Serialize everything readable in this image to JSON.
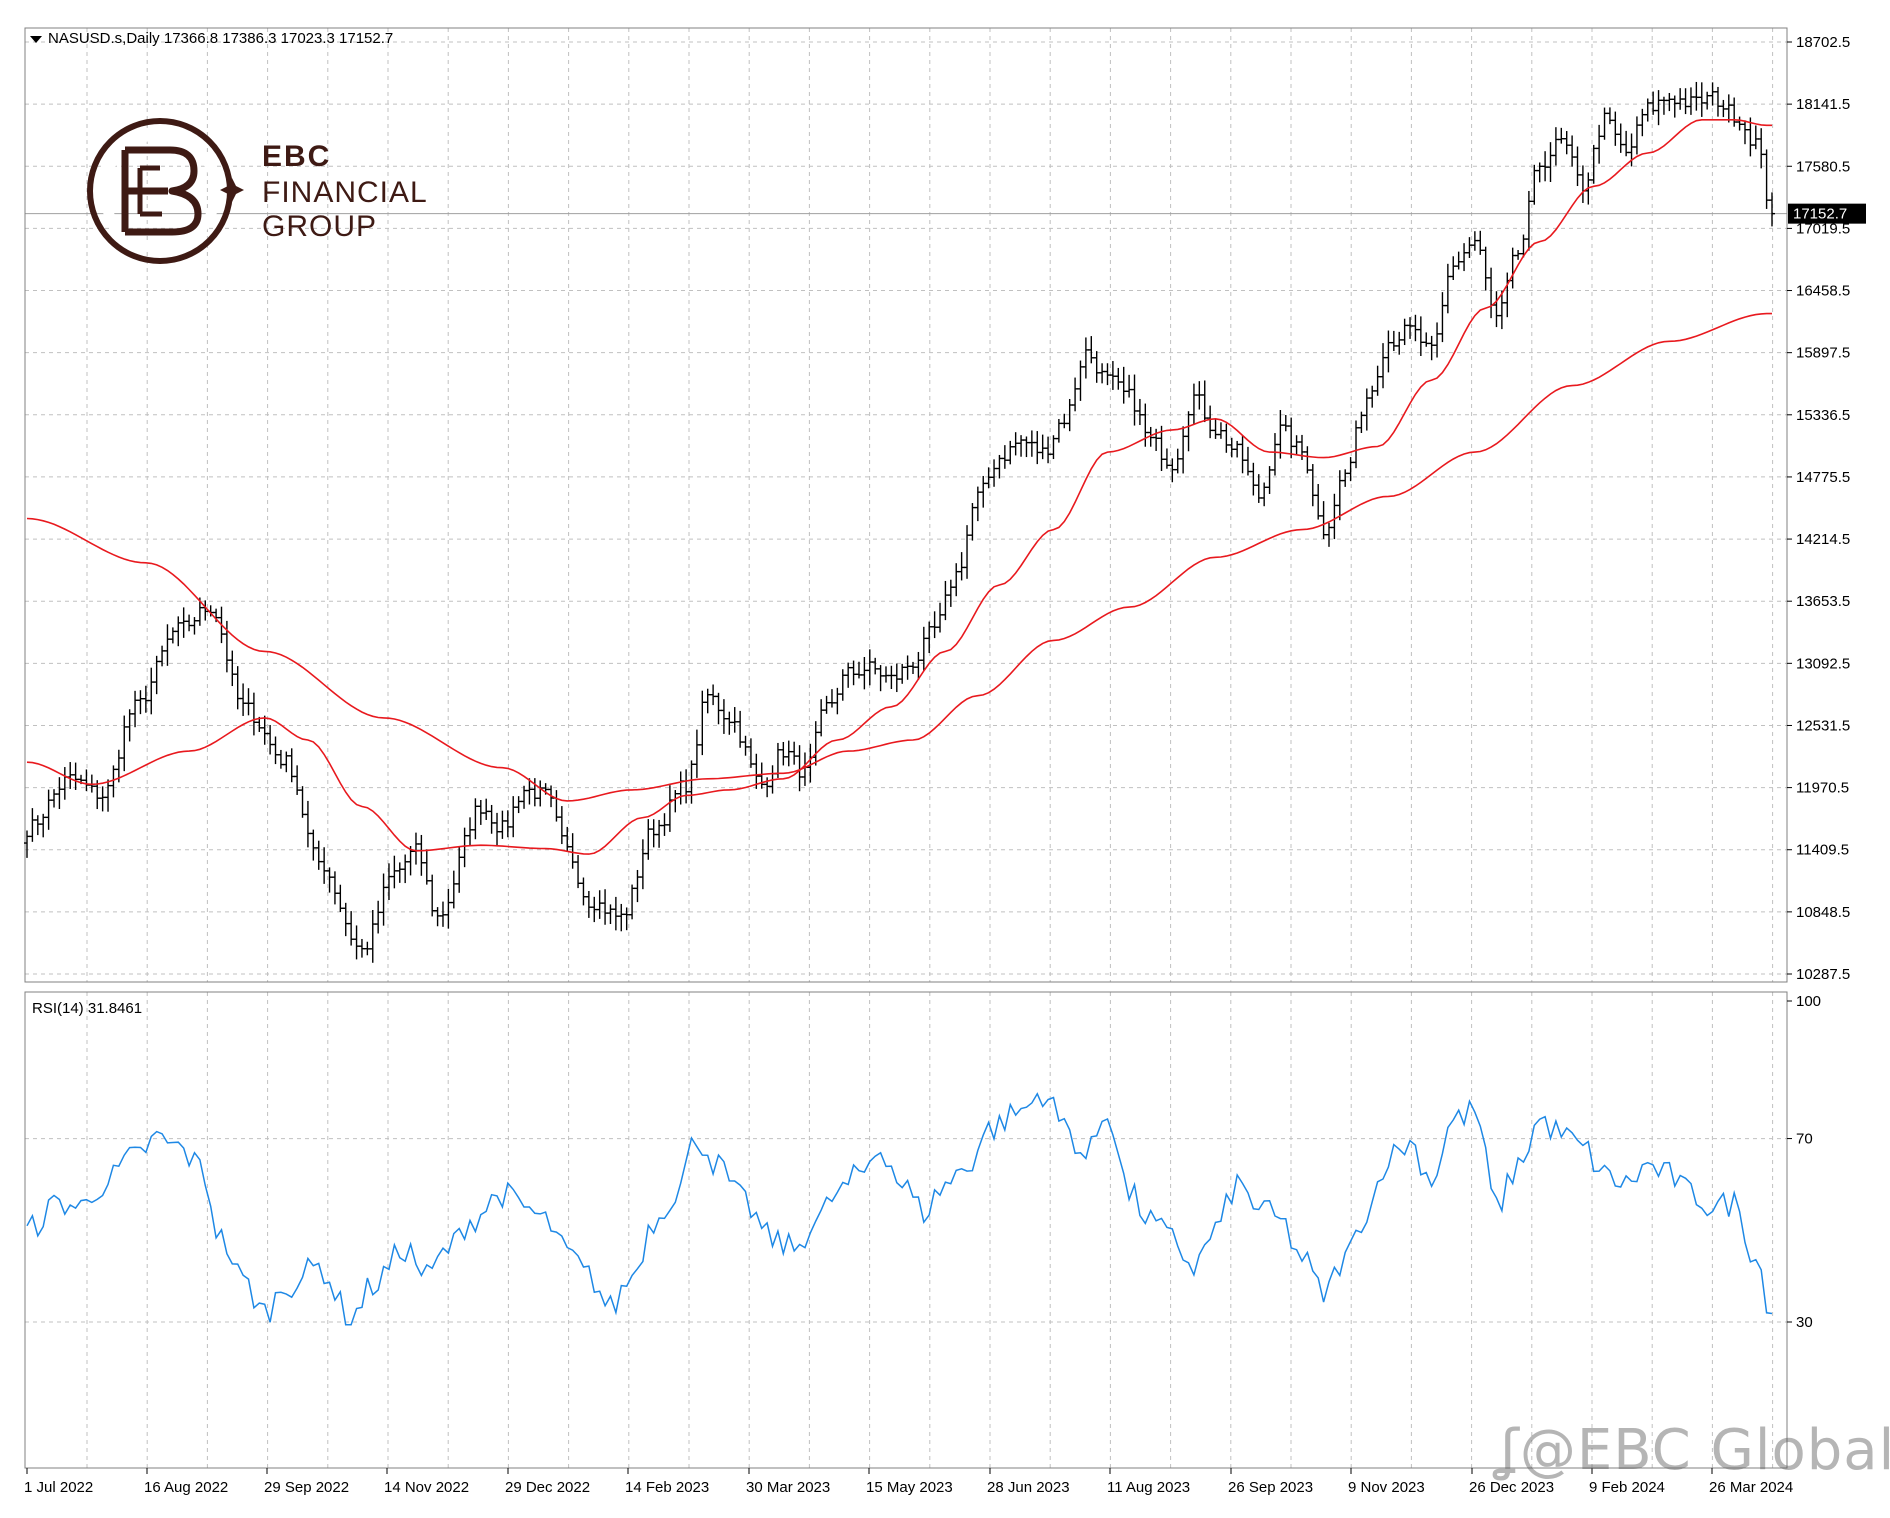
{
  "header": {
    "symbol_line": "NASUSD.s,Daily  17366.8 17386.3 17023.3 17152.7",
    "rsi_label": "RSI(14) 31.8461"
  },
  "logo": {
    "line1": "EBC",
    "line2": "FINANCIAL",
    "line3": "GROUP"
  },
  "watermark": "@EBC Global",
  "colors": {
    "candles": "#000000",
    "ma": "#e8191e",
    "rsi": "#1e88e5",
    "grid": "#c0c0c0",
    "frame": "#808080",
    "logo": "#3e1a14"
  },
  "chart_data": [
    {
      "type": "line",
      "panel": "price",
      "ylim": [
        10287.5,
        18702.5
      ],
      "yticks": [
        "18702.5",
        "18141.5",
        "17580.5",
        "17019.5",
        "16458.5",
        "15897.5",
        "15336.5",
        "14775.5",
        "14214.5",
        "13653.5",
        "13092.5",
        "12531.5",
        "11970.5",
        "11409.5",
        "10848.5",
        "10287.5"
      ],
      "current_price": "17152.7",
      "xticks": [
        "1 Jul 2022",
        "16 Aug 2022",
        "29 Sep 2022",
        "14 Nov 2022",
        "29 Dec 2022",
        "14 Feb 2023",
        "30 Mar 2023",
        "15 May 2023",
        "28 Jun 2023",
        "11 Aug 2023",
        "26 Sep 2023",
        "9 Nov 2023",
        "26 Dec 2023",
        "9 Feb 2024",
        "26 Mar 2024"
      ],
      "price_anchors": [
        [
          0,
          11600
        ],
        [
          8,
          12050
        ],
        [
          14,
          11900
        ],
        [
          20,
          12700
        ],
        [
          28,
          13400
        ],
        [
          34,
          13600
        ],
        [
          40,
          12700
        ],
        [
          48,
          12200
        ],
        [
          54,
          11300
        ],
        [
          62,
          10500
        ],
        [
          68,
          11200
        ],
        [
          72,
          11400
        ],
        [
          76,
          10800
        ],
        [
          84,
          11800
        ],
        [
          88,
          11600
        ],
        [
          92,
          11950
        ],
        [
          96,
          11900
        ],
        [
          100,
          11400
        ],
        [
          104,
          10950
        ],
        [
          110,
          10800
        ],
        [
          116,
          11600
        ],
        [
          122,
          12000
        ],
        [
          126,
          12800
        ],
        [
          130,
          12600
        ],
        [
          136,
          12000
        ],
        [
          140,
          12300
        ],
        [
          144,
          12100
        ],
        [
          148,
          12700
        ],
        [
          152,
          13000
        ],
        [
          156,
          13050
        ],
        [
          160,
          12950
        ],
        [
          164,
          13100
        ],
        [
          168,
          13400
        ],
        [
          172,
          13900
        ],
        [
          176,
          14600
        ],
        [
          180,
          14950
        ],
        [
          184,
          15100
        ],
        [
          188,
          15000
        ],
        [
          192,
          15300
        ],
        [
          196,
          15900
        ],
        [
          200,
          15650
        ],
        [
          204,
          15500
        ],
        [
          208,
          15100
        ],
        [
          212,
          14900
        ],
        [
          216,
          15500
        ],
        [
          220,
          15200
        ],
        [
          224,
          15000
        ],
        [
          228,
          14600
        ],
        [
          232,
          15200
        ],
        [
          236,
          15000
        ],
        [
          240,
          14300
        ],
        [
          244,
          14800
        ],
        [
          248,
          15500
        ],
        [
          252,
          16000
        ],
        [
          256,
          16100
        ],
        [
          260,
          15900
        ],
        [
          264,
          16700
        ],
        [
          268,
          16900
        ],
        [
          272,
          16200
        ],
        [
          276,
          16800
        ],
        [
          280,
          17600
        ],
        [
          284,
          17800
        ],
        [
          288,
          17400
        ],
        [
          292,
          18000
        ],
        [
          296,
          17700
        ],
        [
          300,
          18100
        ],
        [
          304,
          18200
        ],
        [
          308,
          18150
        ],
        [
          312,
          18200
        ],
        [
          316,
          18050
        ],
        [
          320,
          17800
        ],
        [
          323,
          17152.7
        ]
      ],
      "series": [
        {
          "role": "moving-average-1",
          "anchors": [
            [
              0,
              12200
            ],
            [
              12,
              12000
            ],
            [
              30,
              12300
            ],
            [
              44,
              12600
            ],
            [
              52,
              12400
            ],
            [
              62,
              11800
            ],
            [
              72,
              11400
            ],
            [
              84,
              11450
            ],
            [
              96,
              11420
            ],
            [
              104,
              11370
            ],
            [
              114,
              11700
            ],
            [
              122,
              11900
            ],
            [
              130,
              11950
            ],
            [
              140,
              12050
            ],
            [
              150,
              12400
            ],
            [
              160,
              12700
            ],
            [
              170,
              13200
            ],
            [
              180,
              13800
            ],
            [
              190,
              14300
            ],
            [
              200,
              15000
            ],
            [
              212,
              15200
            ],
            [
              220,
              15300
            ],
            [
              230,
              15000
            ],
            [
              240,
              14950
            ],
            [
              250,
              15050
            ],
            [
              260,
              15650
            ],
            [
              270,
              16300
            ],
            [
              280,
              16900
            ],
            [
              290,
              17400
            ],
            [
              300,
              17700
            ],
            [
              310,
              18000
            ],
            [
              316,
              18000
            ],
            [
              322,
              17950
            ]
          ]
        },
        {
          "role": "moving-average-2",
          "anchors": [
            [
              0,
              14400
            ],
            [
              22,
              14000
            ],
            [
              44,
              13200
            ],
            [
              66,
              12600
            ],
            [
              88,
              12150
            ],
            [
              100,
              11850
            ],
            [
              112,
              11950
            ],
            [
              126,
              12050
            ],
            [
              140,
              12100
            ],
            [
              152,
              12300
            ],
            [
              164,
              12400
            ],
            [
              176,
              12800
            ],
            [
              190,
              13300
            ],
            [
              204,
              13600
            ],
            [
              220,
              14050
            ],
            [
              236,
              14300
            ],
            [
              252,
              14600
            ],
            [
              268,
              15000
            ],
            [
              286,
              15600
            ],
            [
              304,
              16000
            ],
            [
              322,
              16250
            ]
          ]
        }
      ]
    },
    {
      "type": "line",
      "panel": "rsi",
      "title": "RSI(14) 31.8461",
      "ylim": [
        0,
        100
      ],
      "levels": [
        70,
        30
      ],
      "yticks": [
        "100",
        "70",
        "30"
      ],
      "series": [
        {
          "name": "RSI(14)",
          "anchors": [
            [
              0,
              50
            ],
            [
              6,
              56
            ],
            [
              10,
              55
            ],
            [
              14,
              60
            ],
            [
              20,
              66
            ],
            [
              24,
              70
            ],
            [
              28,
              68
            ],
            [
              32,
              64
            ],
            [
              36,
              48
            ],
            [
              40,
              39
            ],
            [
              44,
              32
            ],
            [
              48,
              38
            ],
            [
              54,
              42
            ],
            [
              60,
              31
            ],
            [
              64,
              38
            ],
            [
              70,
              46
            ],
            [
              74,
              40
            ],
            [
              78,
              46
            ],
            [
              82,
              52
            ],
            [
              88,
              58
            ],
            [
              92,
              55
            ],
            [
              96,
              52
            ],
            [
              100,
              45
            ],
            [
              104,
              40
            ],
            [
              108,
              33
            ],
            [
              112,
              40
            ],
            [
              116,
              52
            ],
            [
              120,
              58
            ],
            [
              124,
              70
            ],
            [
              128,
              64
            ],
            [
              132,
              57
            ],
            [
              138,
              48
            ],
            [
              142,
              46
            ],
            [
              146,
              52
            ],
            [
              150,
              58
            ],
            [
              154,
              62
            ],
            [
              158,
              68
            ],
            [
              162,
              60
            ],
            [
              166,
              54
            ],
            [
              170,
              60
            ],
            [
              174,
              64
            ],
            [
              178,
              72
            ],
            [
              184,
              76
            ],
            [
              188,
              80
            ],
            [
              192,
              73
            ],
            [
              196,
              66
            ],
            [
              200,
              76
            ],
            [
              204,
              58
            ],
            [
              208,
              52
            ],
            [
              212,
              48
            ],
            [
              216,
              42
            ],
            [
              220,
              50
            ],
            [
              224,
              60
            ],
            [
              228,
              55
            ],
            [
              232,
              52
            ],
            [
              236,
              44
            ],
            [
              240,
              36
            ],
            [
              244,
              44
            ],
            [
              248,
              54
            ],
            [
              252,
              66
            ],
            [
              256,
              69
            ],
            [
              260,
              61
            ],
            [
              264,
              74
            ],
            [
              268,
              76
            ],
            [
              272,
              55
            ],
            [
              276,
              64
            ],
            [
              280,
              74
            ],
            [
              284,
              71
            ],
            [
              288,
              68
            ],
            [
              292,
              62
            ],
            [
              296,
              60
            ],
            [
              300,
              64
            ],
            [
              304,
              62
            ],
            [
              308,
              58
            ],
            [
              312,
              55
            ],
            [
              316,
              56
            ],
            [
              320,
              44
            ],
            [
              323,
              31.8461
            ]
          ]
        }
      ]
    }
  ]
}
